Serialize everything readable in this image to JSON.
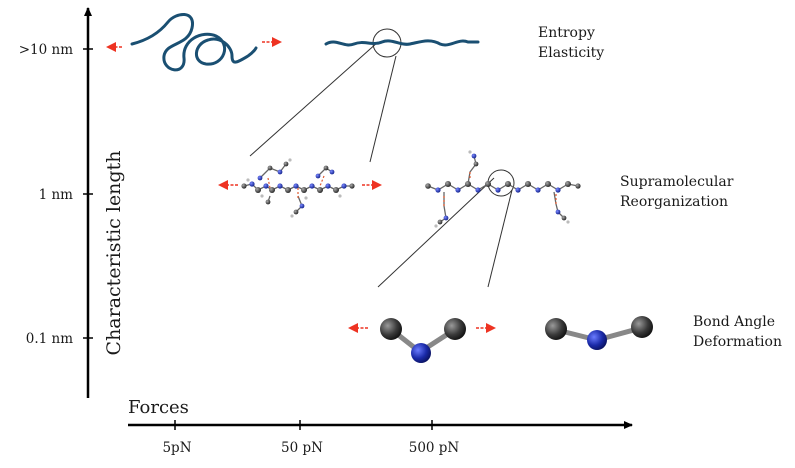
{
  "axes": {
    "y_label": "Characteristic length",
    "x_label": "Forces",
    "y_ticks": [
      ">10 nm",
      "1 nm",
      "0.1 nm"
    ],
    "x_ticks": [
      "5pN",
      "50 pN",
      "500 pN"
    ]
  },
  "levels": [
    {
      "line1": "Entropy",
      "line2": "Elasticity"
    },
    {
      "line1": "Supramolecular",
      "line2": "Reorganization"
    },
    {
      "line1": "Bond Angle",
      "line2": "Deformation"
    }
  ],
  "colors": {
    "force_arrow": "#ee3322",
    "polymer_chain": "#1a4f72",
    "carbon_atom": "#3a3a3a",
    "nitrogen_atom": "#1a2aa8",
    "hydrogen_bond": "#e05a30",
    "axis": "#000000"
  }
}
